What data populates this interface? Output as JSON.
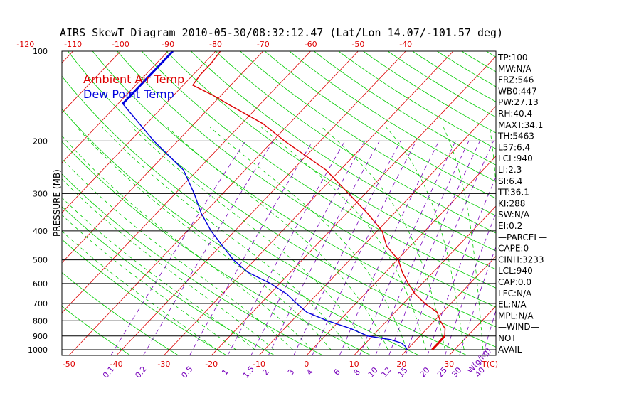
{
  "chart_data": {
    "type": "line",
    "title": "AIRS SkewT Diagram 2010-05-30/08:32:12.47 (Lat/Lon 14.07/-101.57 deg)",
    "ylabel": "PRESSURE (MB)",
    "xlabel": "T(C)",
    "mixing_ratio_label": "W(g/kg)",
    "pressure_ticks": [
      100,
      200,
      300,
      400,
      500,
      600,
      700,
      800,
      900,
      1000
    ],
    "top_temp_ticks": [
      -120,
      -110,
      -100,
      -90,
      -80,
      -70,
      -60,
      -50,
      -40
    ],
    "bottom_temp_ticks": [
      -50,
      -40,
      -30,
      -20,
      -10,
      0,
      10,
      20,
      30
    ],
    "mixing_ratio_ticks": [
      "0.1",
      "0.2",
      "0.5",
      "1",
      "1.5",
      "2",
      "3",
      "4",
      "6",
      "8",
      "10",
      "12",
      "15",
      "20",
      "25",
      "30",
      "40"
    ],
    "legend": [
      "Ambient Air Temp",
      "Dew Point Temp"
    ],
    "series": [
      {
        "name": "Ambient Air Temp",
        "color": "#dd0000",
        "points": [
          [
            1000,
            25.3
          ],
          [
            950,
            25.3
          ],
          [
            900,
            25.2
          ],
          [
            850,
            23.8
          ],
          [
            800,
            21.2
          ],
          [
            750,
            18.9
          ],
          [
            700,
            14.5
          ],
          [
            650,
            10.5
          ],
          [
            600,
            7.0
          ],
          [
            550,
            3.5
          ],
          [
            500,
            0.2
          ],
          [
            450,
            -5.0
          ],
          [
            400,
            -9.0
          ],
          [
            350,
            -15.5
          ],
          [
            300,
            -23.5
          ],
          [
            250,
            -33.0
          ],
          [
            200,
            -47.5
          ],
          [
            175,
            -55.5
          ],
          [
            150,
            -67.0
          ],
          [
            140,
            -72.0
          ],
          [
            130,
            -78.0
          ],
          [
            120,
            -78.5
          ],
          [
            110,
            -78.5
          ],
          [
            100,
            -79.0
          ]
        ]
      },
      {
        "name": "Dew Point Temp",
        "color": "#0000dd",
        "points": [
          [
            1000,
            20.0
          ],
          [
            975,
            19.0
          ],
          [
            950,
            17.5
          ],
          [
            925,
            14.5
          ],
          [
            900,
            9.0
          ],
          [
            850,
            4.0
          ],
          [
            800,
            -2.5
          ],
          [
            750,
            -8.5
          ],
          [
            700,
            -12.5
          ],
          [
            650,
            -16.5
          ],
          [
            600,
            -22.0
          ],
          [
            550,
            -29.0
          ],
          [
            500,
            -34.5
          ],
          [
            450,
            -39.5
          ],
          [
            400,
            -45.0
          ],
          [
            350,
            -50.5
          ],
          [
            300,
            -56.0
          ],
          [
            250,
            -63.0
          ],
          [
            200,
            -75.0
          ],
          [
            150,
            -89.0
          ],
          [
            140,
            -89.0
          ],
          [
            120,
            -89.0
          ],
          [
            100,
            -89.0
          ]
        ]
      }
    ],
    "indices": [
      "TP:100",
      "MW:N/A",
      "FRZ:546",
      "WB0:447",
      "PW:27.13",
      "RH:40.4",
      "MAXT:34.1",
      "TH:5463",
      "L57:6.4",
      "LCL:940",
      "LI:2.3",
      "SI:6.4",
      "TT:36.1",
      "KI:288",
      "SW:N/A",
      "EI:0.2",
      "—PARCEL—",
      "CAPE:0",
      "CINH:3233",
      "LCL:940",
      "CAP:0.0",
      "LFC:N/A",
      "EL:N/A",
      "MPL:N/A",
      "—WIND—",
      "NOT",
      "AVAIL"
    ],
    "colors": {
      "isotherm": "#dd0000",
      "dry_adiabat": "#00cc00",
      "moist_adiabat": "#00cc00",
      "mixing_ratio": "#7700bb",
      "isobar": "#000000",
      "temp_trace": "#dd0000",
      "dewpoint_trace": "#0000dd"
    }
  }
}
